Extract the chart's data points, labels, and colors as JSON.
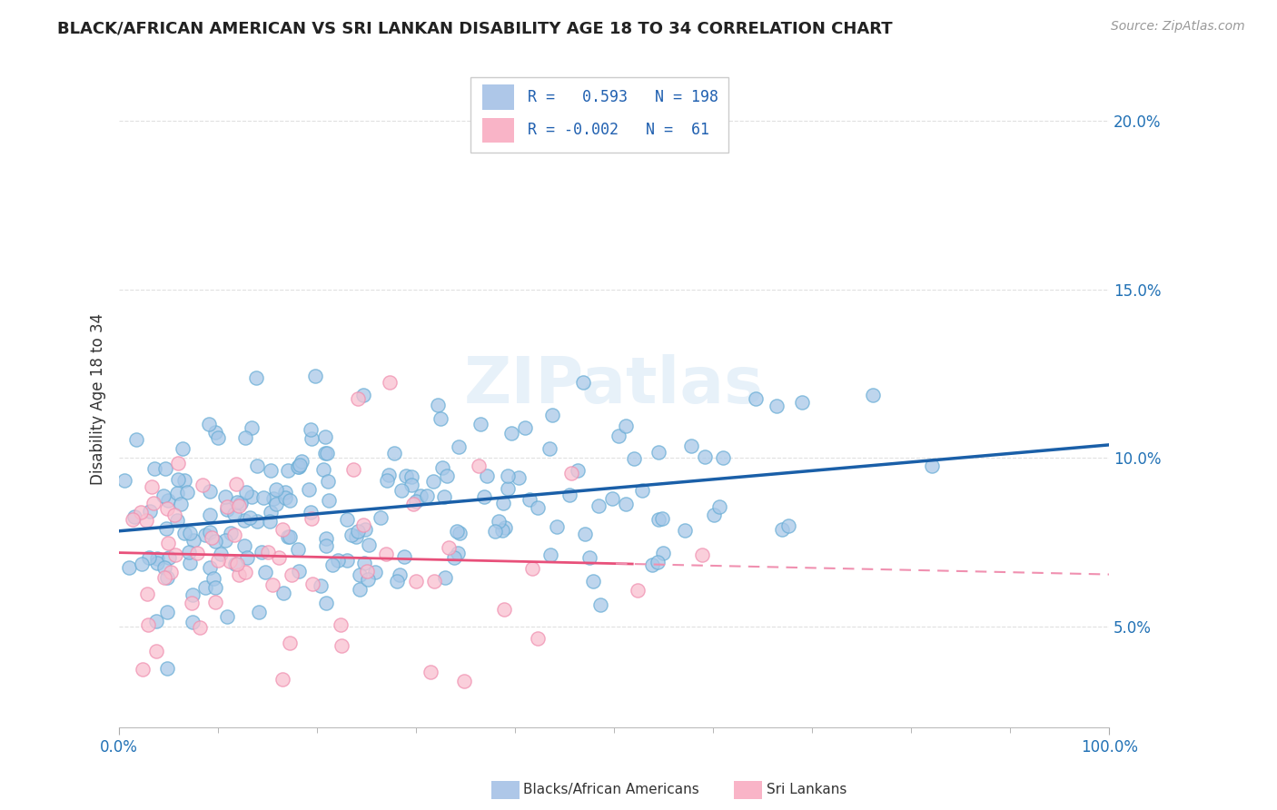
{
  "title": "BLACK/AFRICAN AMERICAN VS SRI LANKAN DISABILITY AGE 18 TO 34 CORRELATION CHART",
  "source": "Source: ZipAtlas.com",
  "ylabel": "Disability Age 18 to 34",
  "blue_R": 0.593,
  "blue_N": 198,
  "pink_R": -0.002,
  "pink_N": 61,
  "xlim": [
    0.0,
    1.0
  ],
  "ylim": [
    0.02,
    0.215
  ],
  "yticks": [
    0.05,
    0.1,
    0.15,
    0.2
  ],
  "ytick_labels": [
    "5.0%",
    "10.0%",
    "15.0%",
    "20.0%"
  ],
  "xtick_labels": [
    "0.0%",
    "100.0%"
  ],
  "blue_color": "#a8c8e8",
  "blue_edge_color": "#6aaed6",
  "pink_color": "#f9c0d0",
  "pink_edge_color": "#f090b0",
  "blue_line_color": "#1a5fa8",
  "pink_line_solid_color": "#e8507a",
  "pink_line_dash_color": "#f090b0",
  "watermark": "ZIPatlas",
  "legend_box_blue": "#aec7e8",
  "legend_box_pink": "#f9b4c7",
  "bg_color": "#ffffff",
  "grid_color": "#e0e0e0",
  "title_fontsize": 13,
  "source_fontsize": 10,
  "tick_fontsize": 12,
  "ylabel_fontsize": 12
}
